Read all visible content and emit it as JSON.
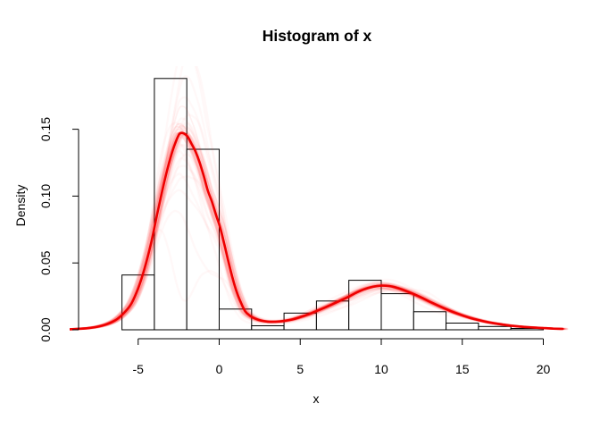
{
  "figure": {
    "title": "Histogram of x",
    "xlabel": "x",
    "ylabel": "Density",
    "background": "#FFFFFF",
    "bar_fill": "#FFFFFF",
    "bar_stroke": "#000000",
    "axis_color": "#000000",
    "curve_color": "#EE0000",
    "ensemble_color_rgb": "255,0,0",
    "ensemble_draws_outer": 42,
    "ensemble_draws_inner": 18
  },
  "chart_data": {
    "type": "histogram",
    "title": "Histogram of x",
    "xlabel": "x",
    "ylabel": "Density",
    "grid": false,
    "legend": "none",
    "x_ticks": [
      -5,
      0,
      5,
      10,
      15,
      20
    ],
    "y_ticks": [
      0.0,
      0.05,
      0.1,
      0.15
    ],
    "y_tick_labels": [
      "0.00",
      "0.05",
      "0.10",
      "0.15"
    ],
    "xlim": [
      -8.8,
      21.2
    ],
    "ylim": [
      0,
      0.192
    ],
    "bin_breaks": [
      -6,
      -4,
      -2,
      0,
      2,
      4,
      6,
      8,
      10,
      12,
      14,
      16,
      18,
      20
    ],
    "bin_densities": [
      0.041,
      0.188,
      0.135,
      0.0155,
      0.003,
      0.0125,
      0.0215,
      0.037,
      0.027,
      0.0135,
      0.005,
      0.0025,
      0.001
    ],
    "density_curve": {
      "name": "density-estimate",
      "x": [
        -9.2,
        -8.6,
        -8.0,
        -7.4,
        -6.8,
        -6.3,
        -5.8,
        -5.4,
        -5.0,
        -4.6,
        -4.2,
        -3.8,
        -3.4,
        -3.0,
        -2.7,
        -2.45,
        -2.2,
        -1.95,
        -1.7,
        -1.45,
        -1.2,
        -0.95,
        -0.7,
        -0.45,
        -0.2,
        0.05,
        0.3,
        0.55,
        0.8,
        1.05,
        1.3,
        1.6,
        1.9,
        2.2,
        2.6,
        3.0,
        3.4,
        3.8,
        4.2,
        4.6,
        5.0,
        5.5,
        6.0,
        6.5,
        7.0,
        7.5,
        8.0,
        8.5,
        9.0,
        9.5,
        10.0,
        10.5,
        11.0,
        11.5,
        12.0,
        12.5,
        13.0,
        13.5,
        14.0,
        14.5,
        15.0,
        15.5,
        16.0,
        16.5,
        17.0,
        17.5,
        18.0,
        18.5,
        19.0,
        19.5,
        20.0,
        20.6,
        21.2
      ],
      "y": [
        0.0004,
        0.0008,
        0.0014,
        0.0026,
        0.0048,
        0.008,
        0.0135,
        0.02,
        0.031,
        0.046,
        0.065,
        0.088,
        0.11,
        0.129,
        0.14,
        0.1465,
        0.147,
        0.1445,
        0.139,
        0.133,
        0.125,
        0.115,
        0.104,
        0.096,
        0.086,
        0.077,
        0.065,
        0.052,
        0.04,
        0.0295,
        0.0215,
        0.014,
        0.0105,
        0.0085,
        0.0068,
        0.0061,
        0.006,
        0.0063,
        0.007,
        0.008,
        0.0095,
        0.0115,
        0.014,
        0.0165,
        0.0192,
        0.022,
        0.0248,
        0.028,
        0.0305,
        0.0322,
        0.033,
        0.0327,
        0.0313,
        0.0292,
        0.0268,
        0.024,
        0.021,
        0.0182,
        0.0155,
        0.013,
        0.0108,
        0.0089,
        0.0073,
        0.0059,
        0.0048,
        0.0039,
        0.0031,
        0.0025,
        0.002,
        0.0016,
        0.0013,
        0.0009,
        0.0007
      ]
    }
  }
}
